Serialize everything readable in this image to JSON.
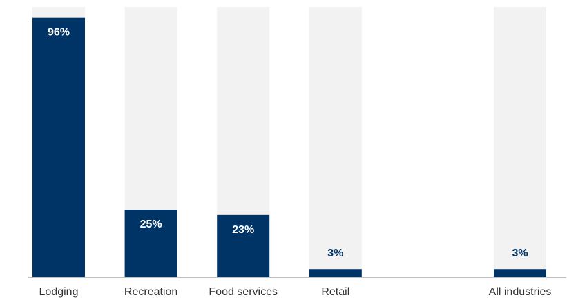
{
  "colors": {
    "bar": "#003366",
    "track": "#f2f2f2",
    "label_inside": "#ffffff",
    "label_outside": "#003366",
    "axis": "#bfbfbf",
    "category_text": "#333333"
  },
  "chart_data": {
    "type": "bar",
    "categories": [
      "Lodging",
      "Recreation",
      "Food services",
      "Retail",
      "",
      "All industries"
    ],
    "values": [
      96,
      25,
      23,
      3,
      null,
      3
    ],
    "data_labels": [
      "96%",
      "25%",
      "23%",
      "3%",
      "",
      "3%"
    ],
    "ylim": [
      0,
      100
    ],
    "title": "",
    "xlabel": "",
    "ylabel": "",
    "grid": false,
    "legend": "none"
  }
}
